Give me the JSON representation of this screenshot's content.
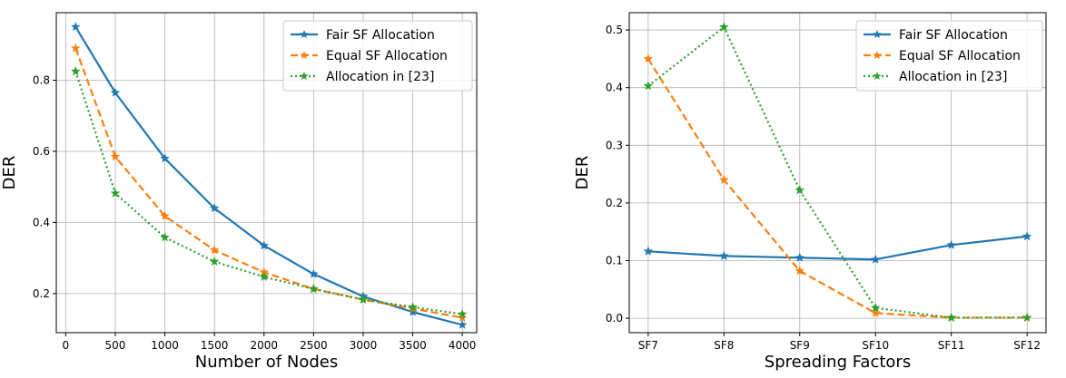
{
  "chart_data": [
    {
      "type": "line",
      "title": "",
      "xlabel": "Number of Nodes",
      "ylabel": "DER",
      "x": [
        100,
        500,
        1000,
        1500,
        2000,
        2500,
        3000,
        3500,
        4000
      ],
      "xticks": [
        0,
        500,
        1000,
        1500,
        2000,
        2500,
        3000,
        3500,
        4000
      ],
      "xtick_labels": [
        "0",
        "500",
        "1000",
        "1500",
        "2000",
        "2500",
        "3000",
        "3500",
        "4000"
      ],
      "yticks": [
        0.2,
        0.4,
        0.6,
        0.8
      ],
      "ytick_labels": [
        "0.2",
        "0.4",
        "0.6",
        "0.8"
      ],
      "xlim": [
        -95,
        4145
      ],
      "ylim": [
        0.09,
        0.99
      ],
      "grid": true,
      "legend_position": "top-right",
      "series": [
        {
          "name": "Fair SF Allocation",
          "color": "#1f77b4",
          "style": "solid",
          "values": [
            0.95,
            0.765,
            0.58,
            0.44,
            0.335,
            0.255,
            0.192,
            0.148,
            0.112
          ]
        },
        {
          "name": "Equal SF Allocation",
          "color": "#ff7f0e",
          "style": "dashed",
          "values": [
            0.89,
            0.585,
            0.418,
            0.322,
            0.26,
            0.213,
            0.183,
            0.158,
            0.132
          ]
        },
        {
          "name": "Allocation in [23]",
          "color": "#2ca02c",
          "style": "dotted",
          "values": [
            0.825,
            0.482,
            0.358,
            0.29,
            0.247,
            0.213,
            0.183,
            0.162,
            0.142
          ]
        }
      ]
    },
    {
      "type": "line",
      "title": "",
      "xlabel": "Spreading Factors",
      "ylabel": "DER",
      "categories": [
        "SF7",
        "SF8",
        "SF9",
        "SF10",
        "SF11",
        "SF12"
      ],
      "yticks": [
        0.0,
        0.1,
        0.2,
        0.3,
        0.4,
        0.5
      ],
      "ytick_labels": [
        "0.0",
        "0.1",
        "0.2",
        "0.3",
        "0.4",
        "0.5"
      ],
      "ylim": [
        -0.025,
        0.53
      ],
      "grid": true,
      "legend_position": "top-right",
      "series": [
        {
          "name": "Fair SF Allocation",
          "color": "#1f77b4",
          "style": "solid",
          "values": [
            0.116,
            0.108,
            0.105,
            0.102,
            0.127,
            0.142
          ]
        },
        {
          "name": "Equal SF Allocation",
          "color": "#ff7f0e",
          "style": "dashed",
          "values": [
            0.45,
            0.24,
            0.082,
            0.009,
            0.001,
            0.001
          ]
        },
        {
          "name": "Allocation in [23]",
          "color": "#2ca02c",
          "style": "dotted",
          "values": [
            0.403,
            0.505,
            0.222,
            0.018,
            0.001,
            0.001
          ]
        }
      ]
    }
  ]
}
